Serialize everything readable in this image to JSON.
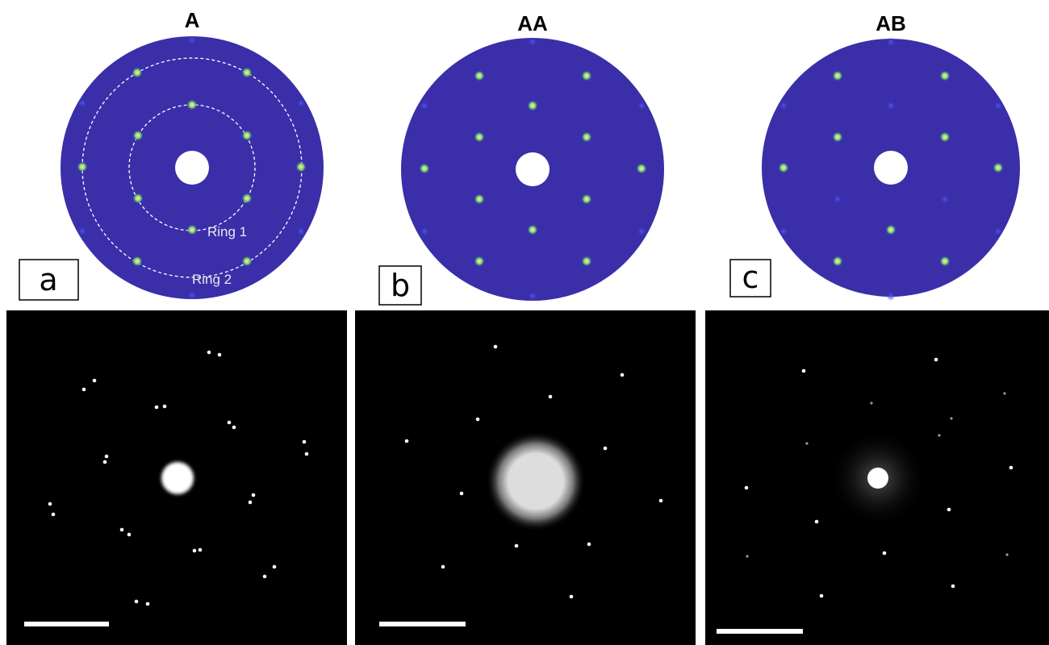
{
  "panels": [
    {
      "title": "A",
      "label": "a",
      "rings": [
        "Ring 1",
        "Ring 2"
      ]
    },
    {
      "title": "AA",
      "label": "b"
    },
    {
      "title": "AB",
      "label": "c"
    }
  ]
}
